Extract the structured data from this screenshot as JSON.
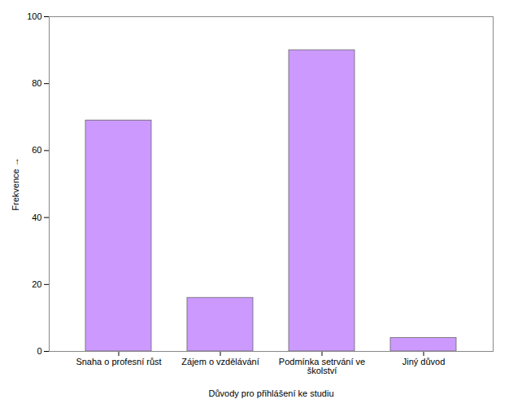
{
  "chart_data": {
    "type": "bar",
    "categories": [
      "Snaha o profesní růst",
      "Zájem o vzdělávání",
      "Podmínka setrvání ve\nškolství",
      "Jiný důvod"
    ],
    "values": [
      69,
      16,
      90,
      4
    ],
    "color": "#cc99ff",
    "xlabel": "Důvody pro přihlášení ke studiu",
    "ylabel": "Frekvence",
    "ylim": [
      0,
      100
    ],
    "yticks": [
      0,
      20,
      40,
      60,
      80,
      100
    ],
    "grid": false
  }
}
